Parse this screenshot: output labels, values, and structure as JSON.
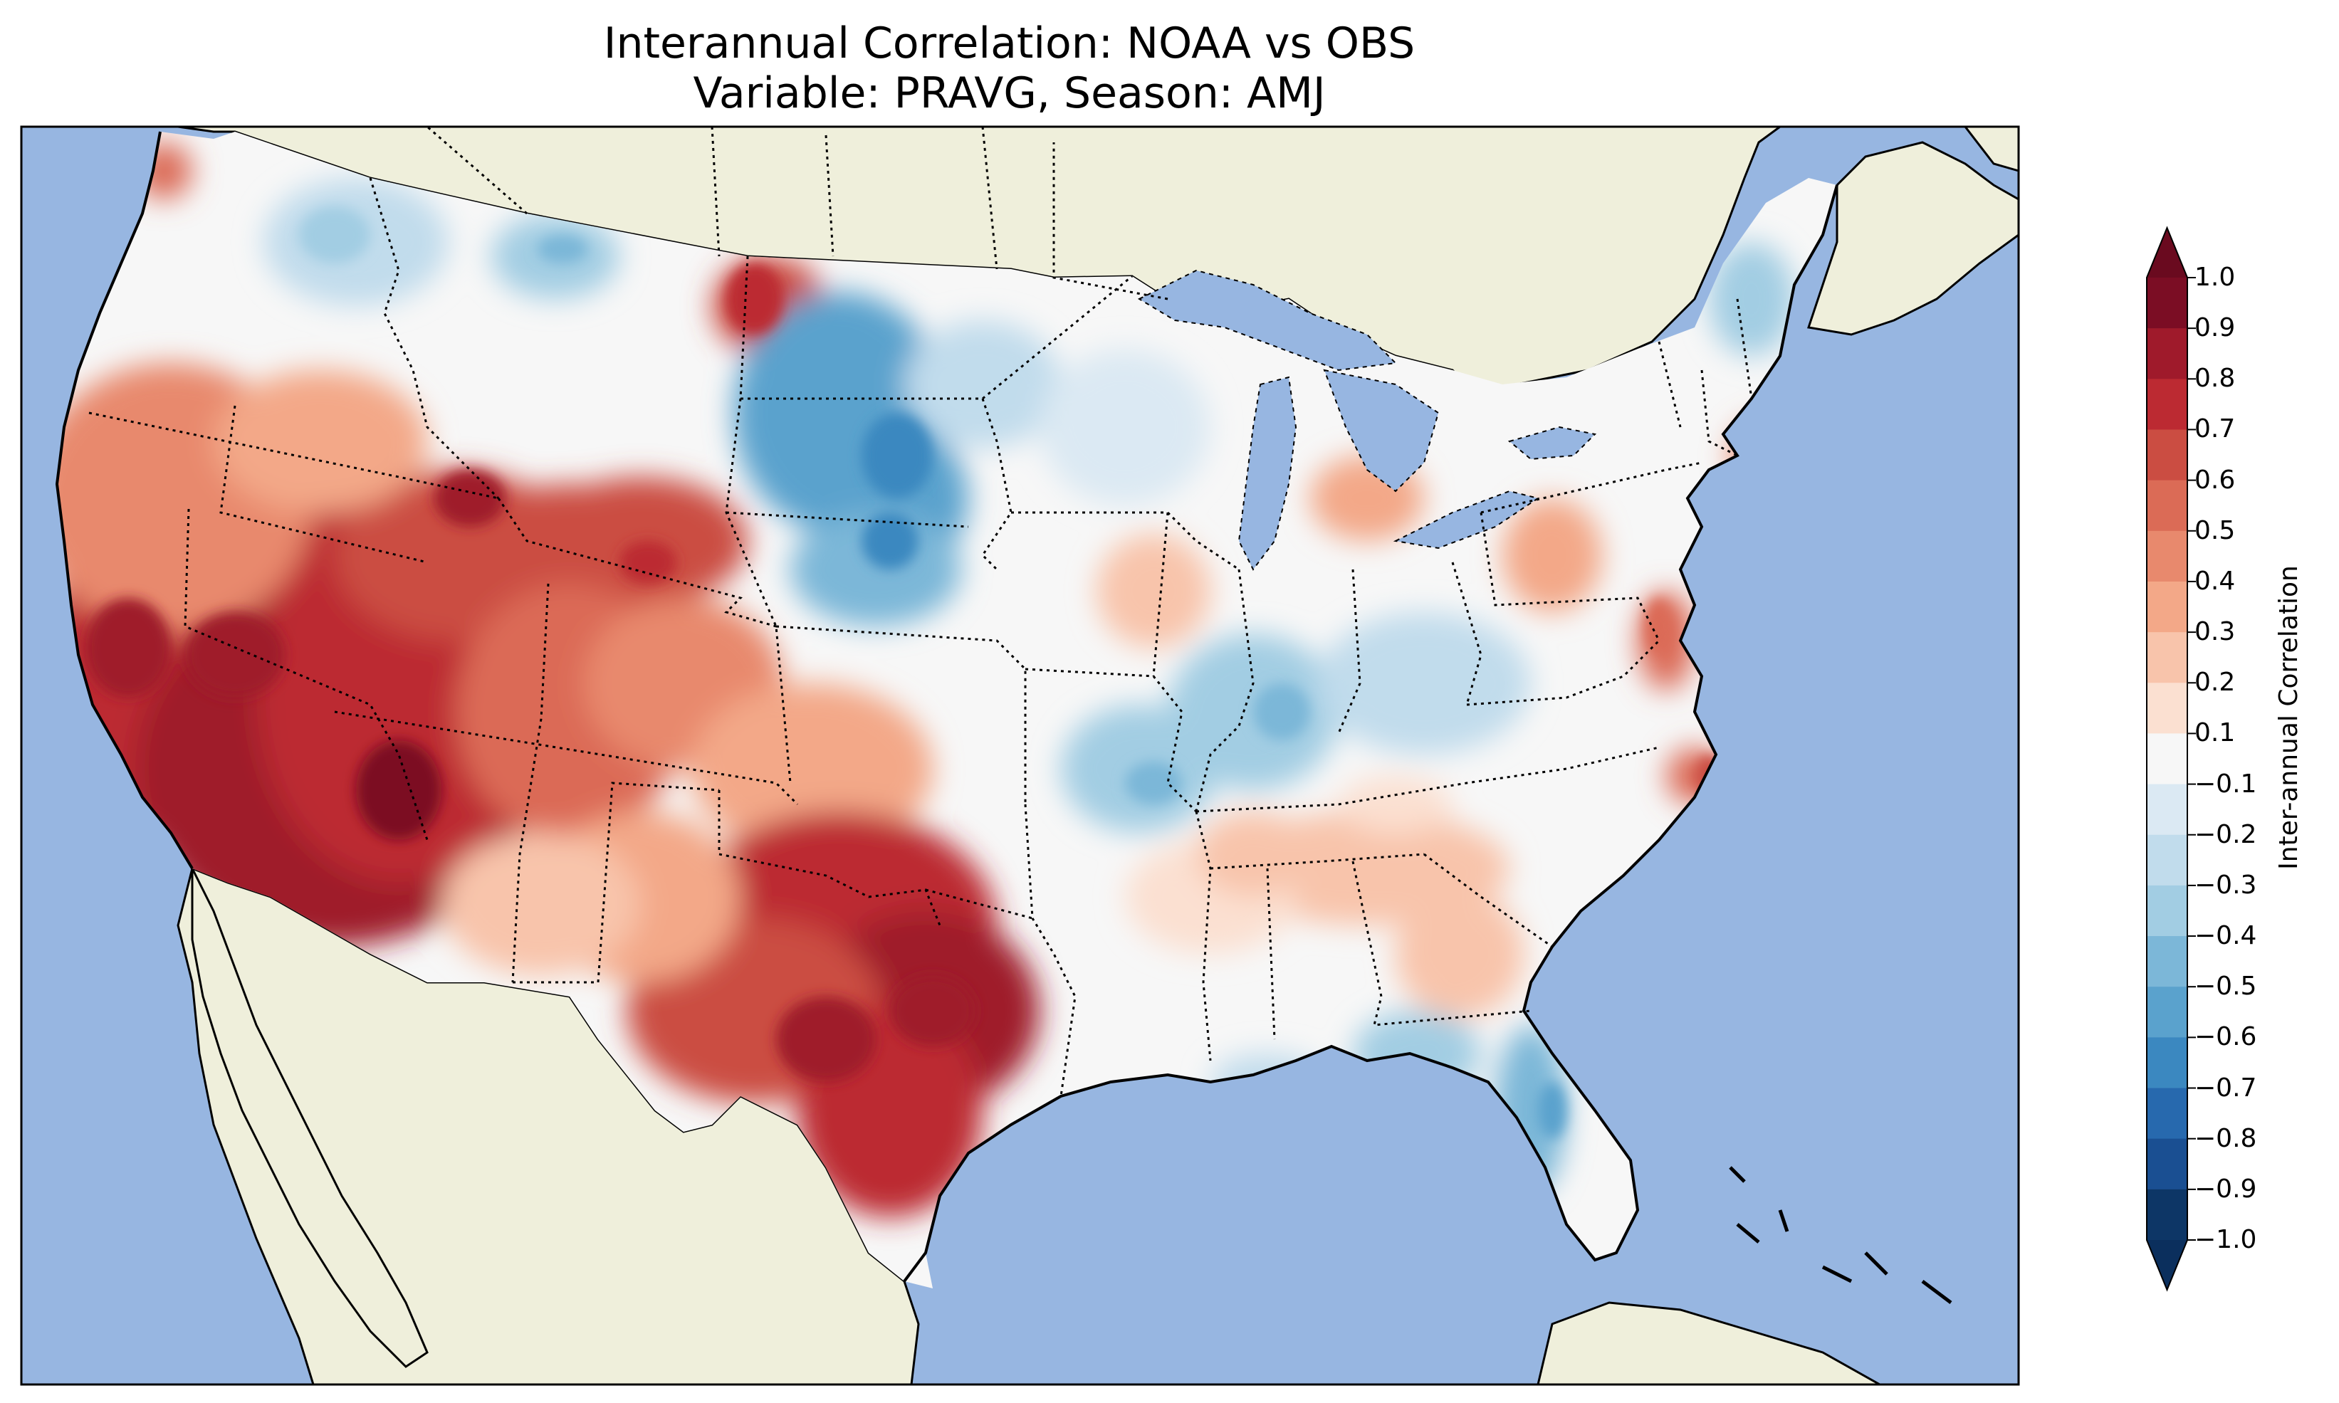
{
  "title": {
    "line1": "Interannual Correlation: NOAA vs OBS",
    "line2": "Variable: PRAVG, Season: AMJ"
  },
  "colors": {
    "ocean": "#97b6e1",
    "land": "#efefdb",
    "coast": "#000000",
    "border": "#000000"
  },
  "colorbar": {
    "label": "Inter-annual Correlation",
    "ticks": [
      "1.0",
      "0.9",
      "0.8",
      "0.7",
      "0.6",
      "0.5",
      "0.4",
      "0.3",
      "0.2",
      "0.1",
      "−0.1",
      "−0.2",
      "−0.3",
      "−0.4",
      "−0.5",
      "−0.6",
      "−0.7",
      "−0.8",
      "−0.9",
      "−1.0"
    ],
    "levels": [
      1.0,
      0.9,
      0.8,
      0.7,
      0.6,
      0.5,
      0.4,
      0.3,
      0.2,
      0.1,
      -0.1,
      -0.2,
      -0.3,
      -0.4,
      -0.5,
      -0.6,
      -0.7,
      -0.8,
      -0.9,
      -1.0
    ],
    "band_colors": [
      "#7b0d24",
      "#9f1a2b",
      "#bc2a32",
      "#cb4d42",
      "#db6b56",
      "#e8896d",
      "#f3a888",
      "#f8c4ab",
      "#fbe0d1",
      "#f7f7f7",
      "#dbe9f3",
      "#c1dcec",
      "#a2cde3",
      "#7cb7d8",
      "#5aa2cd",
      "#3b88c0",
      "#2769ae",
      "#1a4f92",
      "#0d3666"
    ],
    "extend_max_color": "#6a0a1f",
    "extend_min_color": "#0b2f5d"
  },
  "chart_data": {
    "type": "heatmap",
    "title": "Interannual Correlation: NOAA vs OBS",
    "subtitle": "Variable: PRAVG, Season: AMJ",
    "variable": "PRAVG",
    "season": "AMJ",
    "colorbar_label": "Inter-annual Correlation",
    "value_range": [
      -1.0,
      1.0
    ],
    "contour_levels": [
      -1.0,
      -0.9,
      -0.8,
      -0.7,
      -0.6,
      -0.5,
      -0.4,
      -0.3,
      -0.2,
      -0.1,
      0.1,
      0.2,
      0.3,
      0.4,
      0.5,
      0.6,
      0.7,
      0.8,
      0.9,
      1.0
    ],
    "extend": "both",
    "colormap": "RdBu_r"
  }
}
